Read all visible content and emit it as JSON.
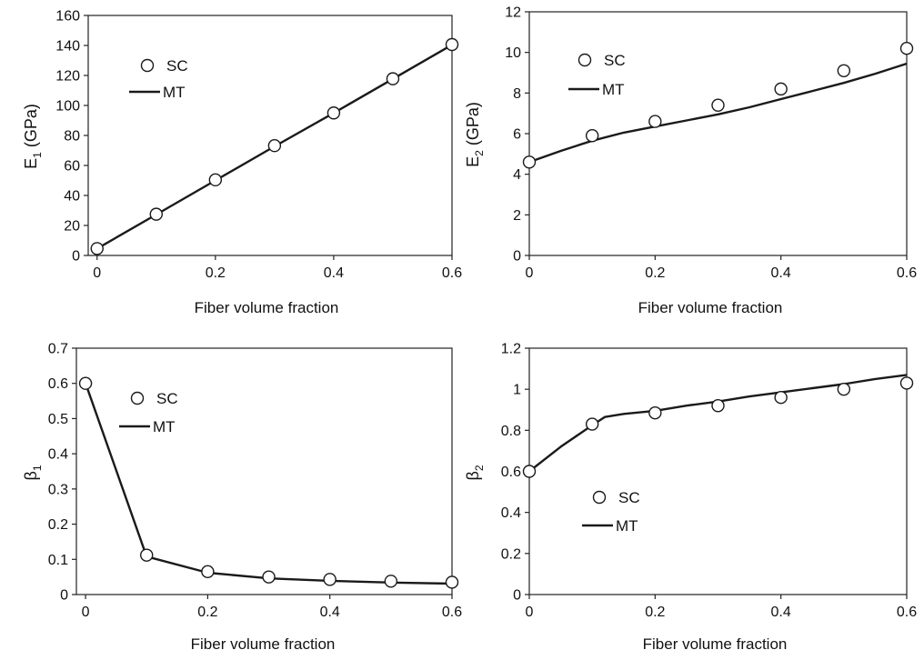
{
  "chart_data": [
    {
      "type": "line",
      "ylabel_main": "E",
      "ylabel_sub": "1",
      "ylabel_unit": " (GPa)",
      "xlabel": "Fiber volume fraction",
      "xlim": [
        -0.015,
        0.6
      ],
      "ylim": [
        0,
        160
      ],
      "xticks": [
        0,
        0.2,
        0.4,
        0.6
      ],
      "xtick_labels": [
        "0",
        "0.2",
        "0.4",
        "0.6"
      ],
      "yticks": [
        0,
        20,
        40,
        60,
        80,
        100,
        120,
        140,
        160
      ],
      "ytick_labels": [
        "0",
        "20",
        "40",
        "60",
        "80",
        "100",
        "120",
        "140",
        "160"
      ],
      "grid": false,
      "legend_position": "top-left",
      "series": [
        {
          "name": "SC",
          "kind": "markers",
          "x": [
            0,
            0.1,
            0.2,
            0.3,
            0.4,
            0.5,
            0.6
          ],
          "y": [
            4.6,
            27.5,
            50.4,
            73.2,
            95,
            117.8,
            140.6
          ]
        },
        {
          "name": "MT",
          "kind": "line",
          "x": [
            0,
            0.1,
            0.2,
            0.3,
            0.4,
            0.5,
            0.6
          ],
          "y": [
            4.6,
            27.3,
            50,
            72.7,
            95,
            117.7,
            140.4
          ]
        }
      ]
    },
    {
      "type": "line",
      "ylabel_main": "E",
      "ylabel_sub": "2",
      "ylabel_unit": " (GPa)",
      "xlabel": "Fiber volume fraction",
      "xlim": [
        0,
        0.6
      ],
      "ylim": [
        0,
        12
      ],
      "xticks": [
        0,
        0.2,
        0.4,
        0.6
      ],
      "xtick_labels": [
        "0",
        "0.2",
        "0.4",
        "0.6"
      ],
      "yticks": [
        0,
        2,
        4,
        6,
        8,
        10,
        12
      ],
      "ytick_labels": [
        "0",
        "2",
        "4",
        "6",
        "8",
        "10",
        "12"
      ],
      "grid": false,
      "legend_position": "top-left",
      "series": [
        {
          "name": "SC",
          "kind": "markers",
          "x": [
            0,
            0.1,
            0.2,
            0.3,
            0.4,
            0.5,
            0.6
          ],
          "y": [
            4.6,
            5.9,
            6.6,
            7.4,
            8.2,
            9.1,
            10.2
          ]
        },
        {
          "name": "MT",
          "kind": "line",
          "x": [
            0,
            0.05,
            0.1,
            0.15,
            0.2,
            0.25,
            0.3,
            0.35,
            0.4,
            0.45,
            0.5,
            0.55,
            0.6
          ],
          "y": [
            4.6,
            5.15,
            5.65,
            6.05,
            6.35,
            6.65,
            6.95,
            7.3,
            7.7,
            8.1,
            8.5,
            8.95,
            9.45
          ]
        }
      ]
    },
    {
      "type": "line",
      "ylabel_main": "β",
      "ylabel_sub": "1",
      "ylabel_unit": "",
      "xlabel": "Fiber volume fraction",
      "xlim": [
        -0.015,
        0.6
      ],
      "ylim": [
        0,
        0.7
      ],
      "xticks": [
        0,
        0.2,
        0.4,
        0.6
      ],
      "xtick_labels": [
        "0",
        "0.2",
        "0.4",
        "0.6"
      ],
      "yticks": [
        0,
        0.1,
        0.2,
        0.3,
        0.4,
        0.5,
        0.6,
        0.7
      ],
      "ytick_labels": [
        "0",
        "0.1",
        "0.2",
        "0.3",
        "0.4",
        "0.5",
        "0.6",
        "0.7"
      ],
      "grid": false,
      "legend_position": "top-left",
      "series": [
        {
          "name": "SC",
          "kind": "markers",
          "x": [
            0,
            0.1,
            0.2,
            0.3,
            0.4,
            0.5,
            0.6
          ],
          "y": [
            0.6,
            0.112,
            0.065,
            0.05,
            0.043,
            0.038,
            0.035
          ]
        },
        {
          "name": "MT",
          "kind": "line",
          "x": [
            0,
            0.1,
            0.2,
            0.3,
            0.4,
            0.5,
            0.6
          ],
          "y": [
            0.6,
            0.108,
            0.062,
            0.046,
            0.039,
            0.034,
            0.031
          ]
        }
      ]
    },
    {
      "type": "line",
      "ylabel_main": "β",
      "ylabel_sub": "2",
      "ylabel_unit": "",
      "xlabel": "Fiber volume fraction",
      "xlim": [
        0,
        0.6
      ],
      "ylim": [
        0,
        1.2
      ],
      "xticks": [
        0,
        0.2,
        0.4,
        0.6
      ],
      "xtick_labels": [
        "0",
        "0.2",
        "0.4",
        "0.6"
      ],
      "yticks": [
        0,
        0.2,
        0.4,
        0.6,
        0.8,
        1.0,
        1.2
      ],
      "ytick_labels": [
        "0",
        "0.2",
        "0.4",
        "0.6",
        "0.8",
        "1",
        "1.2"
      ],
      "grid": false,
      "legend_position": "center-left",
      "series": [
        {
          "name": "SC",
          "kind": "markers",
          "x": [
            0,
            0.1,
            0.2,
            0.3,
            0.4,
            0.5,
            0.6
          ],
          "y": [
            0.6,
            0.83,
            0.885,
            0.92,
            0.96,
            1.0,
            1.03
          ]
        },
        {
          "name": "MT",
          "kind": "line",
          "x": [
            0,
            0.05,
            0.1,
            0.12,
            0.15,
            0.2,
            0.25,
            0.3,
            0.35,
            0.4,
            0.45,
            0.5,
            0.55,
            0.6
          ],
          "y": [
            0.6,
            0.72,
            0.825,
            0.865,
            0.88,
            0.895,
            0.92,
            0.94,
            0.965,
            0.985,
            1.005,
            1.025,
            1.05,
            1.07
          ]
        }
      ]
    }
  ]
}
